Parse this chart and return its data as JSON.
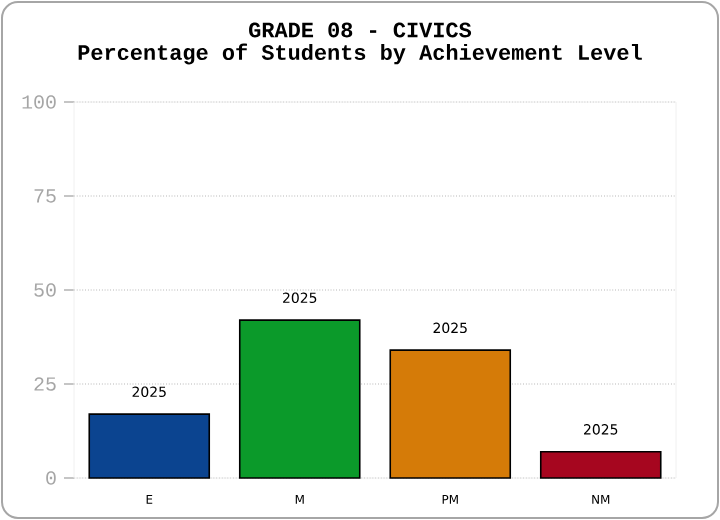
{
  "chart_data": {
    "type": "bar",
    "title": "GRADE 08 - CIVICS",
    "subtitle": "Percentage of Students by Achievement Level",
    "categories": [
      "E",
      "M",
      "PM",
      "NM"
    ],
    "series": [
      {
        "name": "2025",
        "values": [
          17,
          42,
          34,
          7
        ],
        "colors": [
          "#0b4490",
          "#0b9a2a",
          "#d57b08",
          "#a6061f"
        ]
      }
    ],
    "ylim": [
      0,
      100
    ],
    "yticks": [
      0,
      25,
      50,
      75,
      100
    ],
    "grid": "y"
  }
}
